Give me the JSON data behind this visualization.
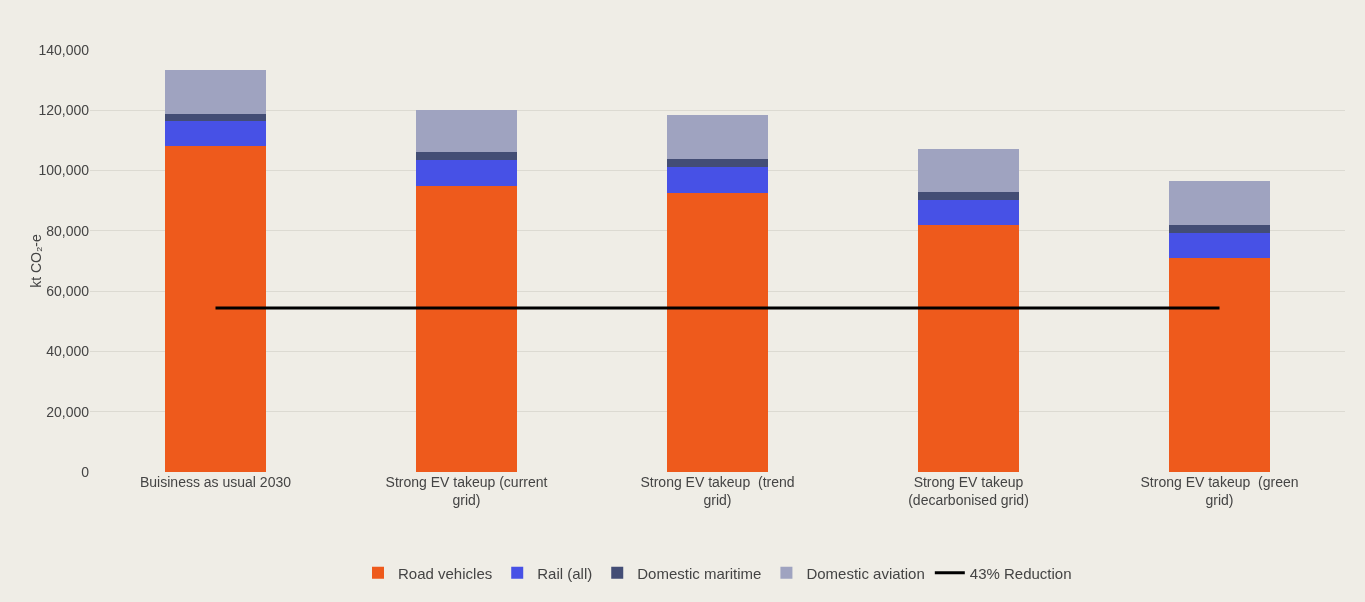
{
  "chart_data": {
    "type": "bar",
    "stacked": true,
    "ylabel": "kt CO₂-e",
    "categories": [
      "Buisiness as usual 2030",
      "Strong EV takeup (current grid)",
      "Strong EV takeup  (trend grid)",
      "Strong EV takeup (decarbonised grid)",
      "Strong EV takeup  (green grid)"
    ],
    "series": [
      {
        "name": "Road vehicles",
        "color": "#ee5a1c",
        "values": [
          108000,
          95000,
          92500,
          81800,
          71100
        ]
      },
      {
        "name": "Rail (all)",
        "color": "#4751e6",
        "values": [
          8400,
          8500,
          8800,
          8500,
          8200
        ]
      },
      {
        "name": "Domestic maritime",
        "color": "#434d75",
        "values": [
          2500,
          2500,
          2500,
          2500,
          2800
        ]
      },
      {
        "name": "Domestic aviation",
        "color": "#9fa3c0",
        "values": [
          14500,
          14200,
          14500,
          14500,
          14500
        ]
      },
      {
        "name": "43% Reduction",
        "type": "line",
        "color": "#000000",
        "values": [
          54400,
          54400,
          54400,
          54400,
          54400
        ]
      }
    ],
    "ylim": [
      0,
      140000
    ],
    "yticks": [
      {
        "value": 0,
        "label": "0"
      },
      {
        "value": 20000,
        "label": "20,000"
      },
      {
        "value": 40000,
        "label": "40,000"
      },
      {
        "value": 60000,
        "label": "60,000"
      },
      {
        "value": 80000,
        "label": "80,000"
      },
      {
        "value": 100000,
        "label": "100,000"
      },
      {
        "value": 120000,
        "label": "120,000"
      },
      {
        "value": 140000,
        "label": "140,000"
      }
    ],
    "grid": "y",
    "legend": "bottom",
    "marker": "none",
    "line_style": "solid"
  }
}
